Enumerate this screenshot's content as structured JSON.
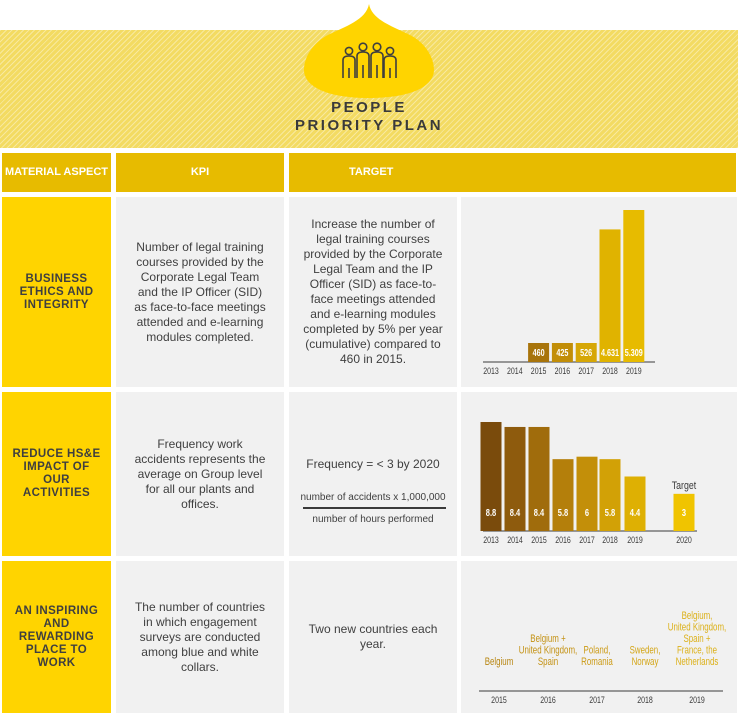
{
  "header": {
    "title_line1": "PEOPLE",
    "title_line2": "PRIORITY PLAN",
    "icon": "people-group-icon",
    "colors": {
      "stripe_bg": "#f3db62",
      "drop": "#ffd400",
      "header_row": "#e7bb00",
      "aspect": "#ffd400",
      "cell": "#f1f1f1"
    }
  },
  "columns": {
    "material_aspect": "MATERIAL ASPECT",
    "kpi": "KPI",
    "target": "TARGET"
  },
  "rows": [
    {
      "aspect": "BUSINESS ETHICS AND INTEGRITY",
      "kpi": "Number of legal training courses provided by the Corporate Legal Team and the IP Officer (SID) as face-to-face meetings attended and e-learning modules completed.",
      "target": "Increase the number of legal training courses provided by the Corporate Legal Team and the IP Officer (SID) as face-to-face meetings attended and e-learning modules completed by 5% per year (cumulative) compared to 460 in 2015."
    },
    {
      "aspect": "REDUCE HS&E IMPACT OF OUR ACTIVITIES",
      "kpi": "Frequency work accidents represents the average on Group level for all our plants and offices.",
      "target": "Frequency = < 3 by 2020",
      "fraction_numerator": "number of accidents x 1,000,000",
      "fraction_denominator": "number of hours performed"
    },
    {
      "aspect": "AN INSPIRING AND REWARDING PLACE TO WORK",
      "kpi": "The number of countries in which engagement surveys are conducted among blue and white collars.",
      "target": "Two new countries each year."
    }
  ],
  "chart_data": [
    {
      "type": "bar",
      "categories": [
        "2013",
        "2014",
        "2015",
        "2016",
        "2017",
        "2018",
        "2019"
      ],
      "values": [
        null,
        null,
        460,
        425,
        526,
        4631,
        5309
      ],
      "labels": [
        "",
        "",
        "460",
        "425",
        "526",
        "4.631",
        "5.309"
      ],
      "colors": [
        "#e7bb00",
        "#e7bb00",
        "#a8740b",
        "#c28e08",
        "#d6a706",
        "#e0b300",
        "#e7bb00"
      ]
    },
    {
      "type": "bar",
      "categories": [
        "2013",
        "2014",
        "2015",
        "2016",
        "2017",
        "2018",
        "2019",
        "2020"
      ],
      "values": [
        8.8,
        8.4,
        8.4,
        5.8,
        6,
        5.8,
        4.4,
        3
      ],
      "labels": [
        "8.8",
        "8.4",
        "8.4",
        "5.8",
        "6",
        "5.8",
        "4.4",
        "3"
      ],
      "annotation": "Target",
      "colors": [
        "#7a4b0c",
        "#8e5b0d",
        "#a06c0c",
        "#b47f0b",
        "#c38f09",
        "#d2a106",
        "#deb003",
        "#f0c400"
      ]
    },
    {
      "type": "table",
      "categories": [
        "2015",
        "2016",
        "2017",
        "2018",
        "2019"
      ],
      "entries": [
        [
          "Belgium"
        ],
        [
          "Belgium +",
          "United Kingdom,",
          "Spain"
        ],
        [
          "Poland,",
          "Romania"
        ],
        [
          "Sweden,",
          "Norway"
        ],
        [
          "Belgium,",
          "United Kingdom,",
          "Spain +",
          "France, the",
          "Netherlands"
        ]
      ],
      "colors": [
        "#b88612",
        "#c49214",
        "#cc9b16",
        "#d4a618",
        "#dcb11a"
      ]
    }
  ]
}
